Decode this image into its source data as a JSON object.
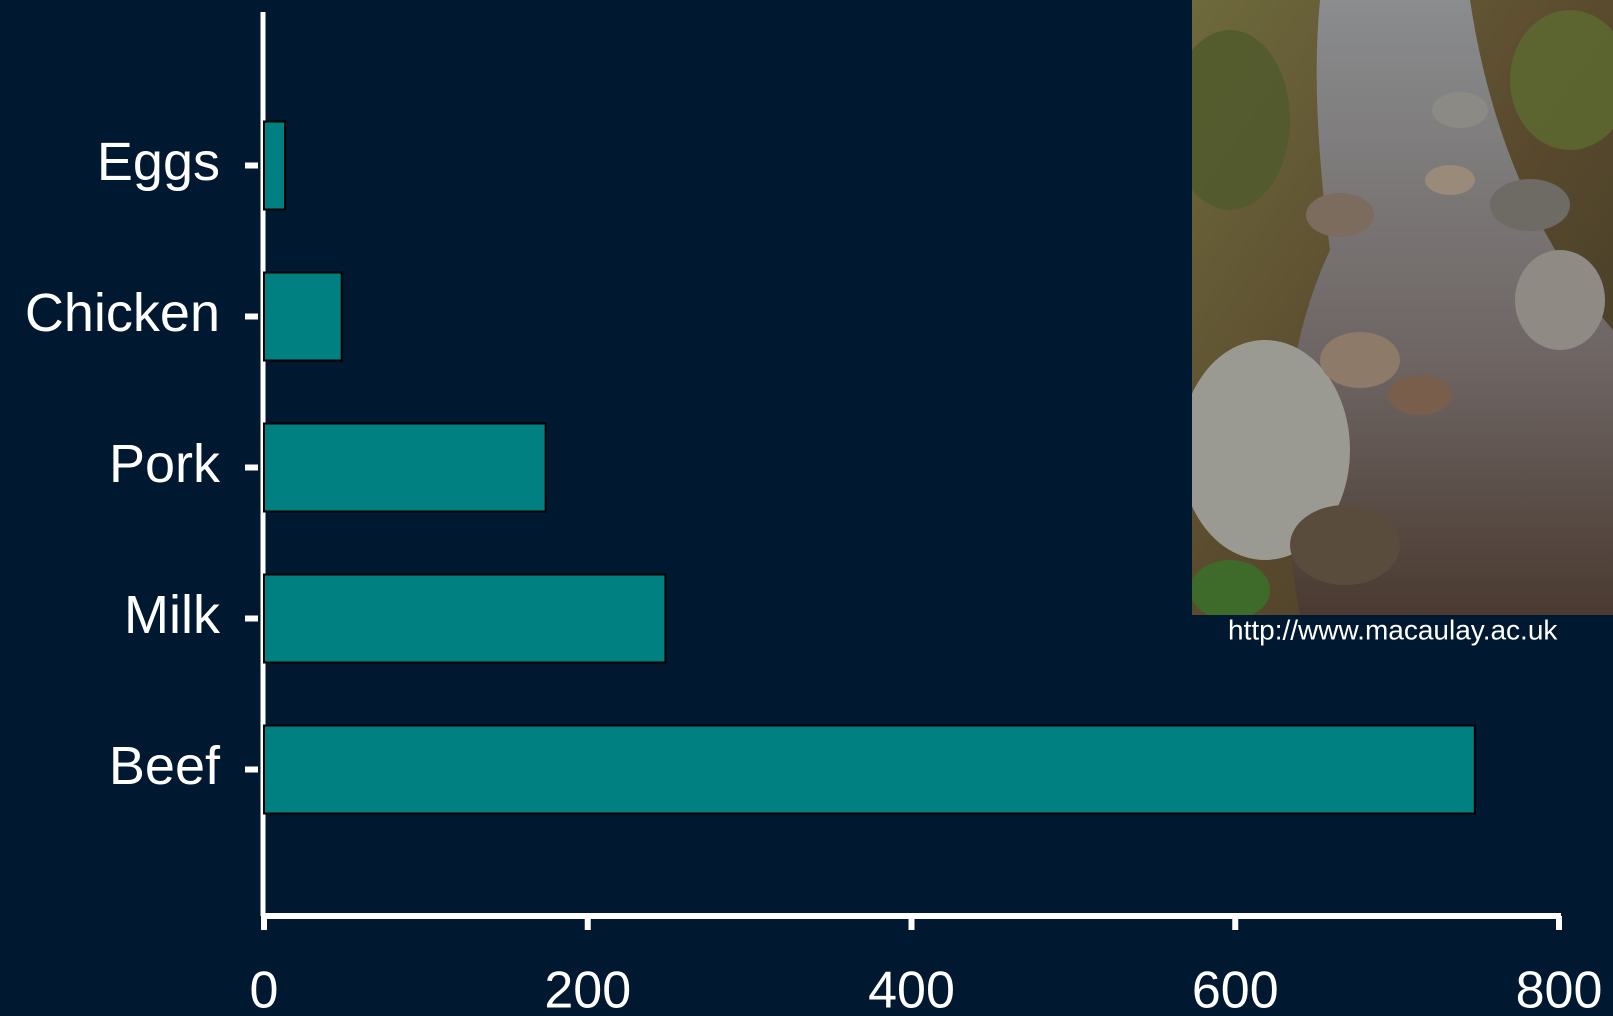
{
  "chart_data": {
    "type": "hbar",
    "categories": [
      "Eggs",
      "Chicken",
      "Pork",
      "Milk",
      "Beef"
    ],
    "values": [
      13,
      48,
      174,
      248,
      748
    ],
    "color": "#008080",
    "xlim": [
      0,
      800
    ],
    "xticks": [
      0,
      200,
      400,
      600,
      800
    ],
    "grid": false,
    "image_caption": "http://www.macaulay.ac.uk"
  }
}
